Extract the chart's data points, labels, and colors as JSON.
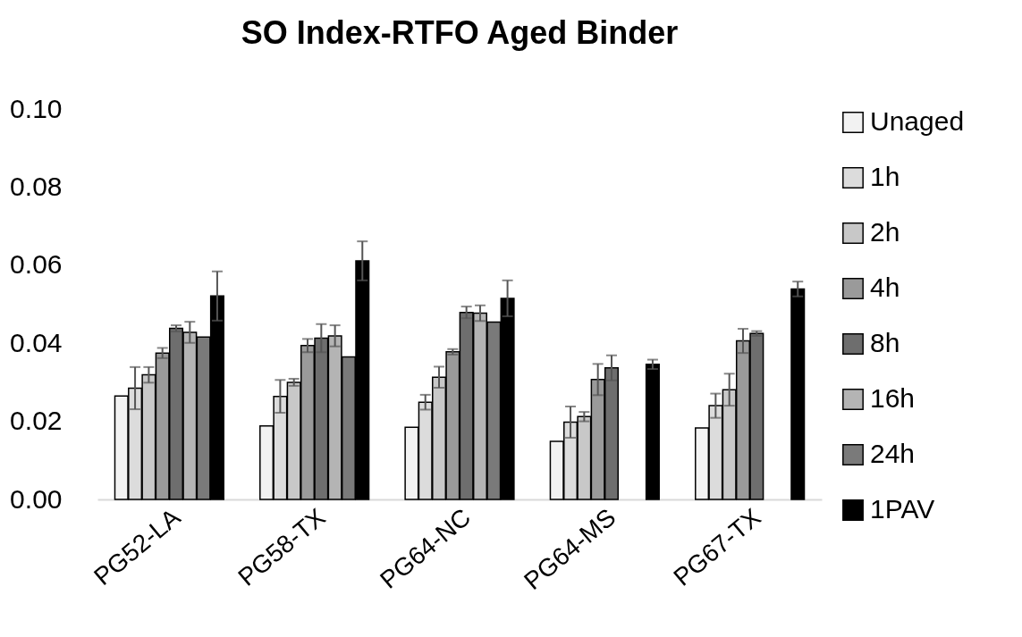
{
  "chart_data": {
    "type": "bar",
    "title": "SO Index-RTFO Aged Binder",
    "categories": [
      "PG52-LA",
      "PG58-TX",
      "PG64-NC",
      "PG64-MS",
      "PG67-TX"
    ],
    "series": [
      {
        "name": "Unaged",
        "color": "#f2f2f2",
        "values": [
          0.0265,
          0.0188,
          0.0185,
          0.0149,
          0.0183
        ]
      },
      {
        "name": "1h",
        "color": "#dcdcdc",
        "values": [
          0.0285,
          0.0264,
          0.0249,
          0.0198,
          0.024
        ],
        "errors": [
          0.0054,
          0.0042,
          0.0019,
          0.004,
          0.0031
        ]
      },
      {
        "name": "2h",
        "color": "#c8c8c8",
        "values": [
          0.0319,
          0.03,
          0.0313,
          0.0212,
          0.0281
        ],
        "errors": [
          0.002,
          0.0009,
          0.0027,
          0.0012,
          0.0041
        ]
      },
      {
        "name": "4h",
        "color": "#9a9a9a",
        "values": [
          0.0375,
          0.0394,
          0.0378,
          0.0307,
          0.0406
        ],
        "errors": [
          0.0013,
          0.0017,
          0.0007,
          0.004,
          0.0031
        ]
      },
      {
        "name": "8h",
        "color": "#6e6e6e",
        "values": [
          0.0438,
          0.0413,
          0.0479,
          0.0337,
          0.0425
        ],
        "errors": [
          0.0008,
          0.0036,
          0.0015,
          0.0032,
          0.0006
        ]
      },
      {
        "name": "16h",
        "color": "#b4b4b4",
        "values": [
          0.0428,
          0.0419,
          0.0477,
          null,
          null
        ],
        "errors": [
          0.0027,
          0.0027,
          0.002,
          null,
          null
        ]
      },
      {
        "name": "24h",
        "color": "#7a7a7a",
        "values": [
          0.0416,
          0.0365,
          0.0454,
          null,
          null
        ]
      },
      {
        "name": "1PAV",
        "color": "#000000",
        "values": [
          0.0521,
          0.0611,
          0.0515,
          0.0346,
          0.0539
        ],
        "errors": [
          0.0063,
          0.005,
          0.0046,
          0.0012,
          0.0019
        ]
      }
    ],
    "ylim": [
      0,
      0.1
    ],
    "yticks": [
      {
        "value": 0,
        "label": "0.00"
      },
      {
        "value": 0.02,
        "label": "0.02"
      },
      {
        "value": 0.04,
        "label": "0.04"
      },
      {
        "value": 0.06,
        "label": "0.06"
      },
      {
        "value": 0.08,
        "label": "0.08"
      },
      {
        "value": 0.1,
        "label": "0.10"
      }
    ],
    "legend": "right"
  }
}
